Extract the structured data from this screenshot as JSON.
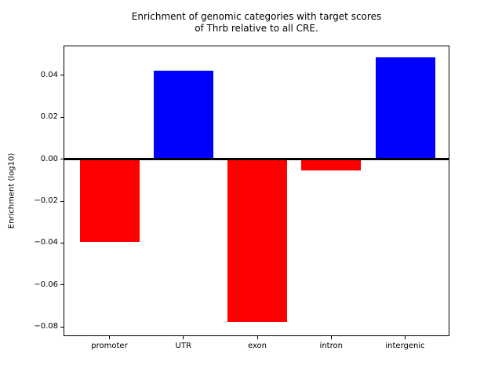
{
  "figure": {
    "background": "#ffffff",
    "title_line1": "Enrichment of genomic categories with target scores",
    "title_line2": "of Thrb relative to all CRE."
  },
  "chart_data": {
    "type": "bar",
    "title": "Enrichment of genomic categories with target scores\nof Thrb relative to all CRE.",
    "xlabel": "",
    "ylabel": "Enrichment (log10)",
    "categories": [
      "promoter",
      "UTR",
      "exon",
      "intron",
      "intergenic"
    ],
    "values": [
      -0.0396,
      0.0422,
      -0.0778,
      -0.0053,
      0.0485
    ],
    "bar_colors": [
      "#ff0000",
      "#0000ff",
      "#ff0000",
      "#ff0000",
      "#0000ff"
    ],
    "color_rule": {
      "positive": "#0000ff",
      "negative": "#ff0000"
    },
    "ylim": [
      -0.0844,
      0.0542
    ],
    "yticks": [
      0.04,
      0.02,
      0.0,
      -0.02,
      -0.04,
      -0.06,
      -0.08
    ],
    "ytick_labels": [
      "0.04",
      "0.02",
      "0.00",
      "−0.02",
      "−0.04",
      "−0.06",
      "−0.08"
    ],
    "zero_line": true,
    "grid": false,
    "legend": null,
    "axis_color": "#000000",
    "text_color": "#000000"
  }
}
